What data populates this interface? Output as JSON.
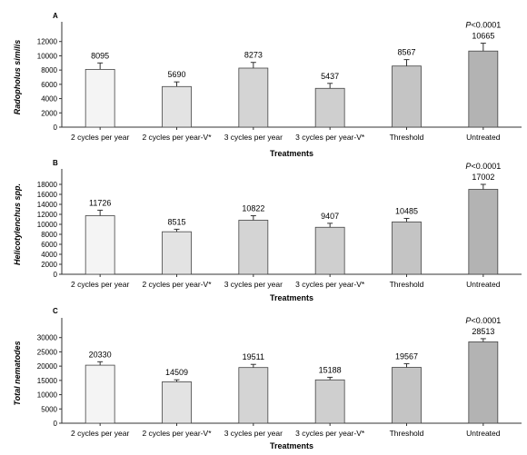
{
  "colors": {
    "axis": "#333333",
    "bar_stroke": "#444444",
    "bar_fills": [
      "#f4f4f4",
      "#e3e3e3",
      "#d4d4d4",
      "#cfcfcf",
      "#c4c4c4",
      "#b3b3b3"
    ]
  },
  "chart_data": [
    {
      "type": "bar",
      "panel": "A",
      "ylabel": "Radopholus similis",
      "xlabel": "Treatments",
      "categories": [
        "2 cycles per year",
        "2 cycles per year-V*",
        "3 cycles per year",
        "3 cycles per year-V*",
        "Threshold",
        "Untreated"
      ],
      "values": [
        8095,
        5690,
        8273,
        5437,
        8567,
        10665
      ],
      "errors": [
        900,
        650,
        800,
        700,
        900,
        1100
      ],
      "value_labels": [
        "8095",
        "5690",
        "8273",
        "5437",
        "8567",
        "10665"
      ],
      "ylim": [
        0,
        14000
      ],
      "yticks": [
        0,
        2000,
        4000,
        6000,
        8000,
        10000,
        12000
      ],
      "annotation": {
        "category_index": 5,
        "prefix": "P",
        "text": "<0.0001"
      }
    },
    {
      "type": "bar",
      "panel": "B",
      "ylabel": "Helicotylenchus spp.",
      "xlabel": "Treatments",
      "categories": [
        "2 cycles per year",
        "2 cycles per year-V*",
        "3 cycles per year",
        "3 cycles per year-V*",
        "Threshold",
        "Untreated"
      ],
      "values": [
        11726,
        8515,
        10822,
        9407,
        10485,
        17002
      ],
      "errors": [
        1100,
        500,
        900,
        800,
        700,
        1000
      ],
      "value_labels": [
        "11726",
        "8515",
        "10822",
        "9407",
        "10485",
        "17002"
      ],
      "ylim": [
        0,
        20000
      ],
      "yticks": [
        0,
        2000,
        4000,
        6000,
        8000,
        10000,
        12000,
        14000,
        16000,
        18000
      ],
      "annotation": {
        "category_index": 5,
        "prefix": "P",
        "text": "<0.0001"
      }
    },
    {
      "type": "bar",
      "panel": "C",
      "ylabel": "Total nematodes",
      "xlabel": "Treatments",
      "categories": [
        "2 cycles per year",
        "2 cycles per year-V*",
        "3 cycles per year",
        "3 cycles per year-V*",
        "Threshold",
        "Untreated"
      ],
      "values": [
        20330,
        14509,
        19511,
        15188,
        19567,
        28513
      ],
      "errors": [
        1200,
        700,
        1100,
        900,
        1300,
        1100
      ],
      "value_labels": [
        "20330",
        "14509",
        "19511",
        "15188",
        "19567",
        "28513"
      ],
      "ylim": [
        0,
        35000
      ],
      "yticks": [
        0,
        5000,
        10000,
        15000,
        20000,
        25000,
        30000
      ],
      "annotation": {
        "category_index": 5,
        "prefix": "P",
        "text": "<0.0001"
      }
    }
  ]
}
